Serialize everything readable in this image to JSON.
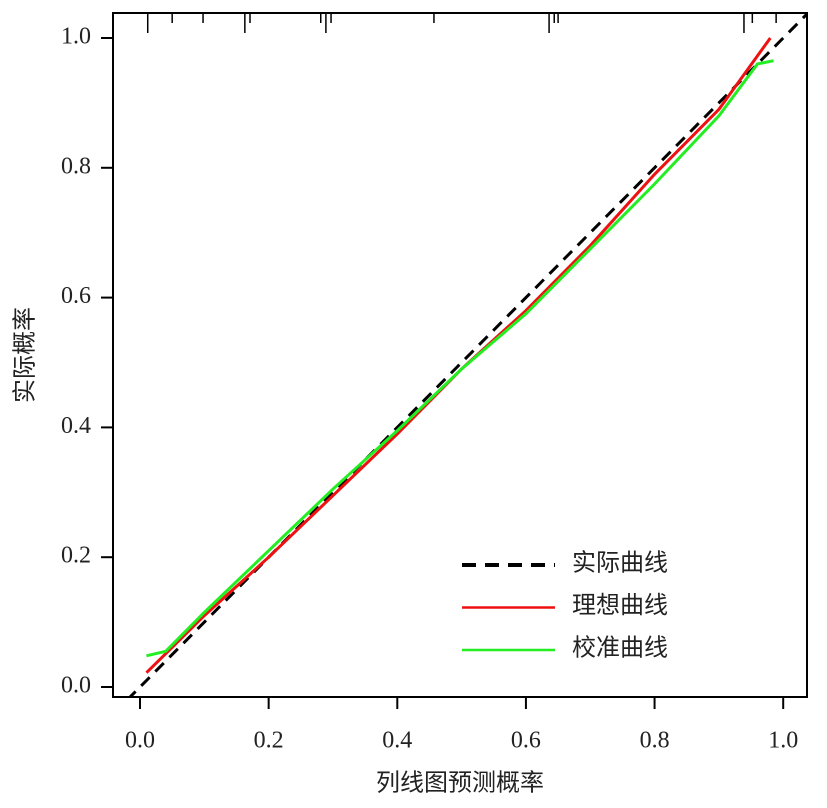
{
  "chart_data": {
    "type": "line",
    "xlabel": "列线图预测概率",
    "ylabel": "实际概率",
    "xlim": [
      -0.042,
      1.037
    ],
    "ylim": [
      -0.0154,
      1.0385
    ],
    "xticks": [
      {
        "value": 0,
        "label": "0.0"
      },
      {
        "value": 0.2,
        "label": "0.2"
      },
      {
        "value": 0.4,
        "label": "0.4"
      },
      {
        "value": 0.6,
        "label": "0.6"
      },
      {
        "value": 0.8,
        "label": "0.8"
      },
      {
        "value": 1,
        "label": "1.0"
      }
    ],
    "yticks": [
      {
        "value": 0,
        "label": "0.0"
      },
      {
        "value": 0.2,
        "label": "0.2"
      },
      {
        "value": 0.4,
        "label": "0.4"
      },
      {
        "value": 0.6,
        "label": "0.6"
      },
      {
        "value": 0.8,
        "label": "0.8"
      },
      {
        "value": 1,
        "label": "1.0"
      }
    ],
    "rug": [
      0.012,
      0.05,
      0.098,
      0.163,
      0.171,
      0.281,
      0.289,
      0.297,
      0.457,
      0.636,
      0.644,
      0.65,
      0.939,
      0.952,
      0.989
    ],
    "legend": "lower right",
    "series": [
      {
        "name": "实际曲线",
        "color": "#000000",
        "dash": true,
        "x": [
          -0.02,
          1.04
        ],
        "values": [
          -0.02,
          1.04
        ]
      },
      {
        "name": "理想曲线",
        "color": "#ee1111",
        "x": [
          0.01,
          0.1,
          0.2,
          0.3,
          0.4,
          0.5,
          0.6,
          0.7,
          0.8,
          0.9,
          0.98
        ],
        "values": [
          0.022,
          0.11,
          0.2,
          0.295,
          0.39,
          0.49,
          0.58,
          0.68,
          0.79,
          0.89,
          1.0
        ]
      },
      {
        "name": "校准曲线",
        "color": "#22ee22",
        "x": [
          0.01,
          0.04,
          0.1,
          0.2,
          0.3,
          0.4,
          0.5,
          0.6,
          0.7,
          0.8,
          0.9,
          0.96,
          0.985
        ],
        "values": [
          0.048,
          0.055,
          0.115,
          0.21,
          0.305,
          0.395,
          0.49,
          0.575,
          0.675,
          0.775,
          0.88,
          0.96,
          0.965
        ]
      }
    ]
  }
}
